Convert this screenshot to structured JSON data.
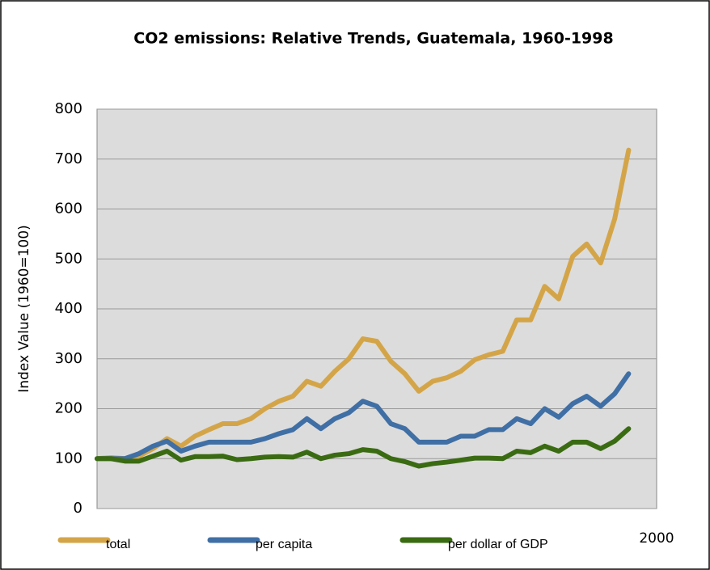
{
  "chart_data": {
    "type": "line",
    "title": "CO2 emissions: Relative Trends, Guatemala, 1960-1998",
    "y_label": "Index Value (1960=100)",
    "x": [
      1960,
      1961,
      1962,
      1963,
      1964,
      1965,
      1966,
      1967,
      1968,
      1969,
      1970,
      1971,
      1972,
      1973,
      1974,
      1975,
      1976,
      1977,
      1978,
      1979,
      1980,
      1981,
      1982,
      1983,
      1984,
      1985,
      1986,
      1987,
      1988,
      1989,
      1990,
      1991,
      1992,
      1993,
      1994,
      1995,
      1996,
      1997,
      1998
    ],
    "series": [
      {
        "name": "total",
        "color": "#d4a548",
        "values": [
          100,
          102,
          100,
          105,
          120,
          140,
          125,
          145,
          158,
          170,
          170,
          180,
          200,
          215,
          225,
          255,
          245,
          275,
          300,
          340,
          335,
          295,
          270,
          235,
          255,
          262,
          275,
          298,
          308,
          315,
          378,
          378,
          445,
          420,
          505,
          530,
          492,
          580,
          718
        ]
      },
      {
        "name": "per capita",
        "color": "#3f6fa5",
        "values": [
          100,
          100,
          100,
          110,
          125,
          135,
          115,
          125,
          133,
          133,
          133,
          133,
          140,
          150,
          158,
          180,
          160,
          180,
          192,
          215,
          205,
          170,
          160,
          133,
          133,
          133,
          145,
          145,
          158,
          158,
          180,
          170,
          200,
          183,
          210,
          225,
          205,
          230,
          270
        ]
      },
      {
        "name": "per dollar of GDP",
        "color": "#3a6b12",
        "values": [
          100,
          100,
          95,
          95,
          105,
          115,
          97,
          104,
          104,
          105,
          98,
          100,
          103,
          104,
          103,
          113,
          100,
          107,
          110,
          118,
          115,
          100,
          94,
          85,
          90,
          93,
          97,
          101,
          101,
          100,
          115,
          112,
          125,
          115,
          133,
          133,
          120,
          135,
          160
        ]
      }
    ],
    "xlim": [
      1960,
      2000
    ],
    "xticks": [
      2000
    ],
    "ylim": [
      0,
      800
    ],
    "yticks": [
      0,
      100,
      200,
      300,
      400,
      500,
      600,
      700,
      800
    ],
    "grid": true,
    "legend": "bottom"
  }
}
